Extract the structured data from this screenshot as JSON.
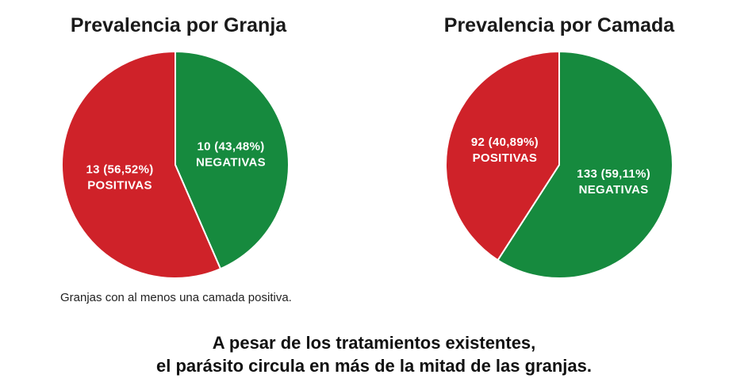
{
  "chart_data": [
    {
      "type": "pie",
      "title": "Prevalencia por Granja",
      "slices": [
        {
          "name": "NEGATIVAS",
          "value": 10,
          "percent_label": "10 (43,48%)",
          "color": "#168a3e"
        },
        {
          "name": "POSITIVAS",
          "value": 13,
          "percent_label": "13 (56,52%)",
          "color": "#cf2229"
        }
      ],
      "note": "Granjas con al menos una camada positiva."
    },
    {
      "type": "pie",
      "title": "Prevalencia por Camada",
      "slices": [
        {
          "name": "NEGATIVAS",
          "value": 133,
          "percent_label": "133 (59,11%)",
          "color": "#168a3e"
        },
        {
          "name": "POSITIVAS",
          "value": 92,
          "percent_label": "92 (40,89%)",
          "color": "#cf2229"
        }
      ]
    }
  ],
  "caption": {
    "line1": "A pesar de los tratamientos existentes,",
    "line2": "el parásito circula en más de la mitad de las granjas."
  }
}
